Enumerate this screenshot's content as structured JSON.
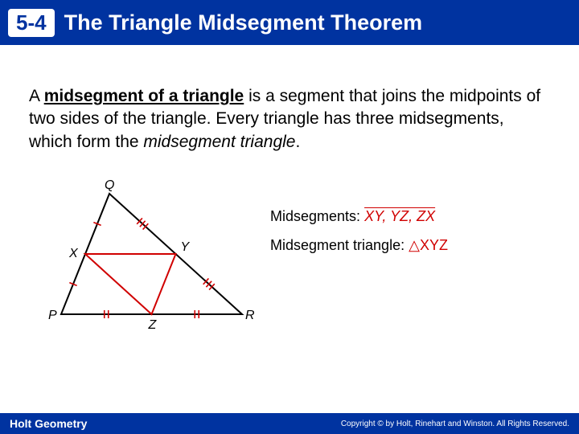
{
  "header": {
    "section": "5-4",
    "title": "The Triangle Midsegment Theorem",
    "bg_color": "#0033a0",
    "text_color": "#ffffff"
  },
  "body": {
    "prefix": "A ",
    "term": "midsegment of a triangle",
    "mid": " is a segment that joins the midpoints of two sides of the triangle. Every triangle has three midsegments, which form the ",
    "italic": "midsegment triangle",
    "suffix": "."
  },
  "diagram": {
    "outer": {
      "P": [
        20,
        170
      ],
      "Q": [
        80,
        20
      ],
      "R": [
        245,
        170
      ]
    },
    "mid": {
      "X": [
        50,
        95
      ],
      "Y": [
        162.5,
        95
      ],
      "Z": [
        132.5,
        170
      ]
    },
    "outer_color": "#000000",
    "mid_color": "#d00000",
    "tick_color": "#d00000",
    "labels": {
      "P": "P",
      "Q": "Q",
      "R": "R",
      "X": "X",
      "Y": "Y",
      "Z": "Z"
    }
  },
  "annotations": {
    "midseg_label": "Midsegments:",
    "midseg_values": "XY, YZ, ZX",
    "tri_label": "Midsegment triangle:",
    "tri_value": "△XYZ",
    "value_color": "#d00000"
  },
  "footer": {
    "left": "Holt Geometry",
    "right": "Copyright © by Holt, Rinehart and Winston. All Rights Reserved."
  }
}
